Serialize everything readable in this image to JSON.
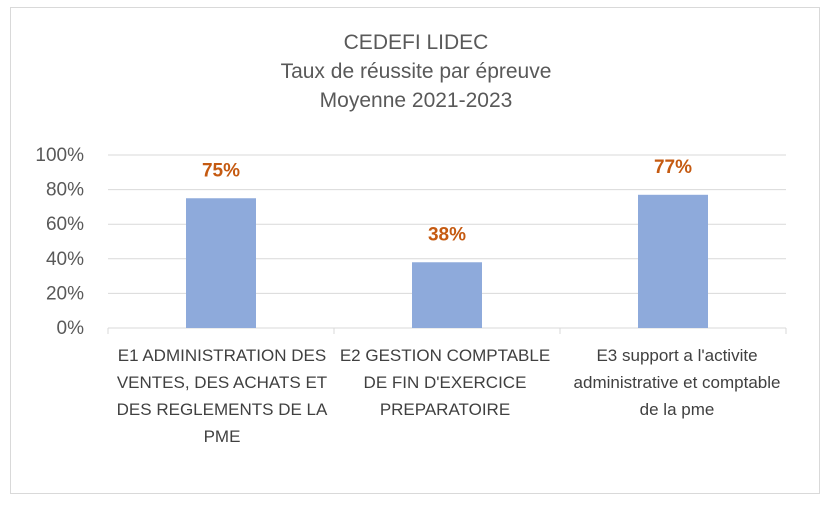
{
  "chart_data": {
    "type": "bar",
    "title": [
      "CEDEFI LIDEC",
      "Taux de réussite par épreuve",
      "Moyenne 2021-2023"
    ],
    "categories": [
      "E1 ADMINISTRATION DES VENTES, DES ACHATS ET DES REGLEMENTS DE LA PME",
      "E2 GESTION COMPTABLE DE FIN D'EXERCICE PREPARATOIRE",
      "E3 support a l'activite administrative et comptable de la pme"
    ],
    "values": [
      75,
      38,
      77
    ],
    "data_labels": [
      "75%",
      "38%",
      "77%"
    ],
    "ylim": [
      0,
      100
    ],
    "yticks": [
      0,
      20,
      40,
      60,
      80,
      100
    ],
    "ytick_labels": [
      "0%",
      "20%",
      "40%",
      "60%",
      "80%",
      "100%"
    ],
    "xlabel": "",
    "ylabel": "",
    "grid": true,
    "legend": "none",
    "colors": {
      "bar": "#8eaadb",
      "data_label": "#c55a11",
      "grid": "#d9d9d9",
      "text": "#595959"
    }
  }
}
